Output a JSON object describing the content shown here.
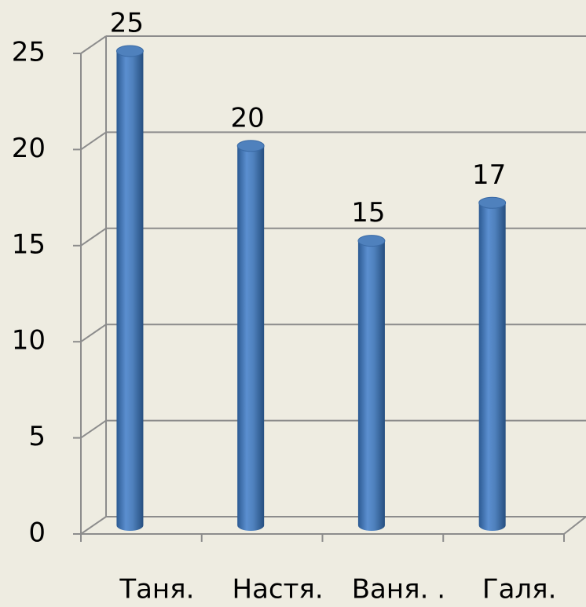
{
  "chart_data": {
    "type": "bar",
    "categories": [
      "Таня.",
      "Настя.",
      "Ваня. .",
      "Галя."
    ],
    "values": [
      25,
      20,
      15,
      17
    ],
    "color": "#4f81bd",
    "ylim": [
      0,
      25
    ],
    "yticks": [
      0,
      5,
      10,
      15,
      20,
      25
    ],
    "grid": true
  }
}
